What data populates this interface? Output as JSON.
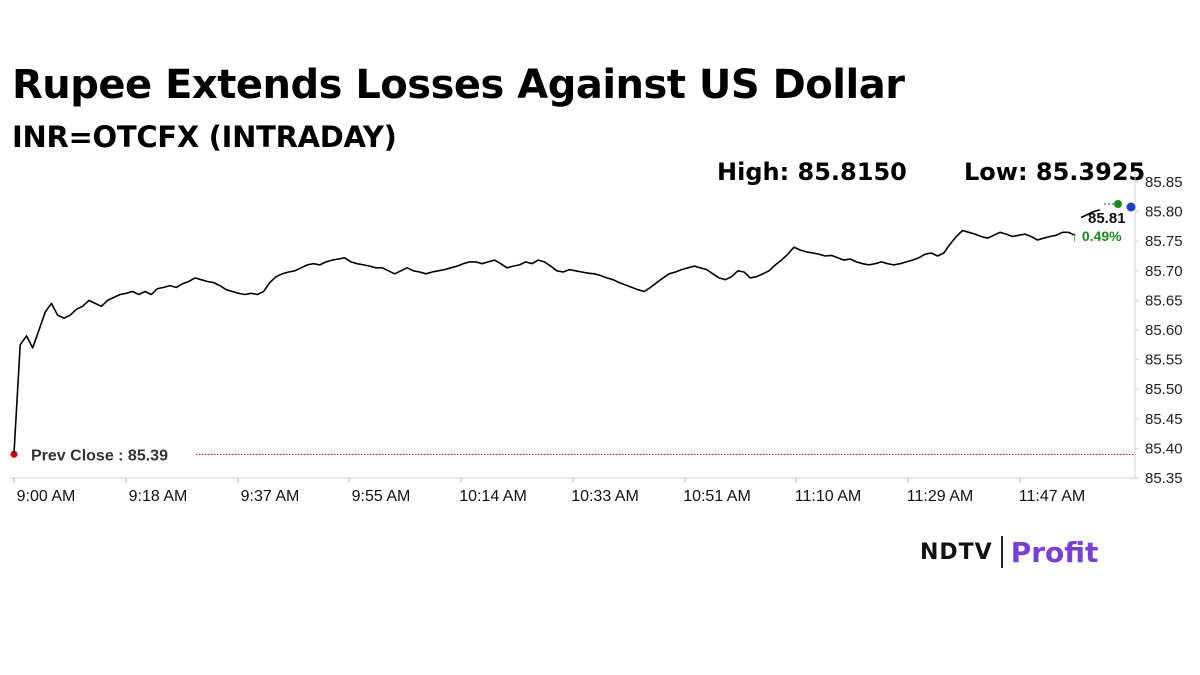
{
  "title": "Rupee Extends Losses Against US Dollar",
  "subtitle": "INR=OTCFX (INTRADAY)",
  "stats": {
    "high": "High: 85.8150",
    "low": "Low: 85.3925"
  },
  "brand": {
    "ndtv": "NDTV",
    "profit": "Profit"
  },
  "colors": {
    "line": "#000000",
    "prev_close": "#d00000",
    "change": "#1a8a1a",
    "marker_blue": "#1f3fbf",
    "marker_green": "#1a8a1a"
  },
  "chart_data": {
    "type": "line",
    "xlabel": "",
    "ylabel": "",
    "ylim": [
      85.35,
      85.85
    ],
    "yticks": [
      "85.85",
      "85.80",
      "85.75",
      "85.70",
      "85.65",
      "85.60",
      "85.55",
      "85.50",
      "85.45",
      "85.40",
      "85.35"
    ],
    "xticks": [
      "9:00 AM",
      "9:18 AM",
      "9:37 AM",
      "9:55 AM",
      "10:14 AM",
      "10:33 AM",
      "10:51 AM",
      "11:10 AM",
      "11:29 AM",
      "11:47 AM"
    ],
    "prev_close": {
      "label": "Prev Close : 85.39",
      "value": 85.39
    },
    "last": {
      "value_label": "85.81",
      "change_label": "↑ 0.49%"
    },
    "series": [
      {
        "points": [
          [
            "9:00",
            85.392
          ],
          [
            "9:01",
            85.575
          ],
          [
            "9:02",
            85.59
          ],
          [
            "9:03",
            85.57
          ],
          [
            "9:04",
            85.6
          ],
          [
            "9:05",
            85.63
          ],
          [
            "9:06",
            85.645
          ],
          [
            "9:07",
            85.625
          ],
          [
            "9:08",
            85.62
          ],
          [
            "9:09",
            85.625
          ],
          [
            "9:10",
            85.635
          ],
          [
            "9:11",
            85.64
          ],
          [
            "9:12",
            85.65
          ],
          [
            "9:13",
            85.645
          ],
          [
            "9:14",
            85.64
          ],
          [
            "9:15",
            85.65
          ],
          [
            "9:16",
            85.655
          ],
          [
            "9:17",
            85.66
          ],
          [
            "9:18",
            85.662
          ],
          [
            "9:19",
            85.665
          ],
          [
            "9:20",
            85.66
          ],
          [
            "9:21",
            85.665
          ],
          [
            "9:22",
            85.66
          ],
          [
            "9:23",
            85.67
          ],
          [
            "9:24",
            85.672
          ],
          [
            "9:25",
            85.675
          ],
          [
            "9:26",
            85.672
          ],
          [
            "9:27",
            85.678
          ],
          [
            "9:28",
            85.682
          ],
          [
            "9:29",
            85.688
          ],
          [
            "9:30",
            85.685
          ],
          [
            "9:31",
            85.682
          ],
          [
            "9:32",
            85.68
          ],
          [
            "9:33",
            85.675
          ],
          [
            "9:34",
            85.668
          ],
          [
            "9:35",
            85.665
          ],
          [
            "9:36",
            85.662
          ],
          [
            "9:37",
            85.66
          ],
          [
            "9:38",
            85.662
          ],
          [
            "9:39",
            85.66
          ],
          [
            "9:40",
            85.665
          ],
          [
            "9:41",
            85.68
          ],
          [
            "9:42",
            85.69
          ],
          [
            "9:43",
            85.695
          ],
          [
            "9:44",
            85.698
          ],
          [
            "9:45",
            85.7
          ],
          [
            "9:46",
            85.705
          ],
          [
            "9:47",
            85.71
          ],
          [
            "9:48",
            85.712
          ],
          [
            "9:49",
            85.71
          ],
          [
            "9:50",
            85.715
          ],
          [
            "9:51",
            85.718
          ],
          [
            "9:52",
            85.72
          ],
          [
            "9:53",
            85.722
          ],
          [
            "9:54",
            85.715
          ],
          [
            "9:55",
            85.712
          ],
          [
            "9:56",
            85.71
          ],
          [
            "9:57",
            85.708
          ],
          [
            "9:58",
            85.705
          ],
          [
            "9:59",
            85.705
          ],
          [
            "10:00",
            85.7
          ],
          [
            "10:01",
            85.695
          ],
          [
            "10:02",
            85.7
          ],
          [
            "10:03",
            85.705
          ],
          [
            "10:04",
            85.7
          ],
          [
            "10:05",
            85.698
          ],
          [
            "10:06",
            85.695
          ],
          [
            "10:07",
            85.698
          ],
          [
            "10:08",
            85.7
          ],
          [
            "10:09",
            85.702
          ],
          [
            "10:10",
            85.705
          ],
          [
            "10:11",
            85.708
          ],
          [
            "10:12",
            85.712
          ],
          [
            "10:13",
            85.715
          ],
          [
            "10:14",
            85.715
          ],
          [
            "10:15",
            85.712
          ],
          [
            "10:16",
            85.715
          ],
          [
            "10:17",
            85.718
          ],
          [
            "10:18",
            85.712
          ],
          [
            "10:19",
            85.705
          ],
          [
            "10:20",
            85.708
          ],
          [
            "10:21",
            85.71
          ],
          [
            "10:22",
            85.715
          ],
          [
            "10:23",
            85.712
          ],
          [
            "10:24",
            85.718
          ],
          [
            "10:25",
            85.715
          ],
          [
            "10:26",
            85.708
          ],
          [
            "10:27",
            85.7
          ],
          [
            "10:28",
            85.698
          ],
          [
            "10:29",
            85.702
          ],
          [
            "10:30",
            85.7
          ],
          [
            "10:31",
            85.698
          ],
          [
            "10:32",
            85.696
          ],
          [
            "10:33",
            85.695
          ],
          [
            "10:34",
            85.692
          ],
          [
            "10:35",
            85.688
          ],
          [
            "10:36",
            85.685
          ],
          [
            "10:37",
            85.68
          ],
          [
            "10:38",
            85.676
          ],
          [
            "10:39",
            85.672
          ],
          [
            "10:40",
            85.668
          ],
          [
            "10:41",
            85.665
          ],
          [
            "10:42",
            85.672
          ],
          [
            "10:43",
            85.68
          ],
          [
            "10:44",
            85.688
          ],
          [
            "10:45",
            85.695
          ],
          [
            "10:46",
            85.698
          ],
          [
            "10:47",
            85.702
          ],
          [
            "10:48",
            85.705
          ],
          [
            "10:49",
            85.708
          ],
          [
            "10:50",
            85.705
          ],
          [
            "10:51",
            85.702
          ],
          [
            "10:52",
            85.695
          ],
          [
            "10:53",
            85.688
          ],
          [
            "10:54",
            85.685
          ],
          [
            "10:55",
            85.69
          ],
          [
            "10:56",
            85.7
          ],
          [
            "10:57",
            85.698
          ],
          [
            "10:58",
            85.688
          ],
          [
            "10:59",
            85.69
          ],
          [
            "11:00",
            85.695
          ],
          [
            "11:01",
            85.7
          ],
          [
            "11:02",
            85.71
          ],
          [
            "11:03",
            85.718
          ],
          [
            "11:04",
            85.728
          ],
          [
            "11:05",
            85.74
          ],
          [
            "11:06",
            85.735
          ],
          [
            "11:07",
            85.732
          ],
          [
            "11:08",
            85.73
          ],
          [
            "11:09",
            85.728
          ],
          [
            "11:10",
            85.725
          ],
          [
            "11:11",
            85.726
          ],
          [
            "11:12",
            85.722
          ],
          [
            "11:13",
            85.718
          ],
          [
            "11:14",
            85.72
          ],
          [
            "11:15",
            85.715
          ],
          [
            "11:16",
            85.712
          ],
          [
            "11:17",
            85.71
          ],
          [
            "11:18",
            85.712
          ],
          [
            "11:19",
            85.715
          ],
          [
            "11:20",
            85.712
          ],
          [
            "11:21",
            85.71
          ],
          [
            "11:22",
            85.712
          ],
          [
            "11:23",
            85.715
          ],
          [
            "11:24",
            85.718
          ],
          [
            "11:25",
            85.722
          ],
          [
            "11:26",
            85.728
          ],
          [
            "11:27",
            85.73
          ],
          [
            "11:28",
            85.725
          ],
          [
            "11:29",
            85.73
          ],
          [
            "11:30",
            85.745
          ],
          [
            "11:31",
            85.758
          ],
          [
            "11:32",
            85.768
          ],
          [
            "11:33",
            85.765
          ],
          [
            "11:34",
            85.762
          ],
          [
            "11:35",
            85.758
          ],
          [
            "11:36",
            85.755
          ],
          [
            "11:37",
            85.76
          ],
          [
            "11:38",
            85.765
          ],
          [
            "11:39",
            85.762
          ],
          [
            "11:40",
            85.758
          ],
          [
            "11:41",
            85.76
          ],
          [
            "11:42",
            85.762
          ],
          [
            "11:43",
            85.758
          ],
          [
            "11:44",
            85.752
          ],
          [
            "11:45",
            85.755
          ],
          [
            "11:46",
            85.758
          ],
          [
            "11:47",
            85.76
          ],
          [
            "11:48",
            85.765
          ],
          [
            "11:49",
            85.765
          ],
          [
            "11:50",
            85.76
          ]
        ]
      },
      {
        "points": [
          [
            "11:51",
            85.79
          ],
          [
            "11:52",
            85.795
          ],
          [
            "11:53",
            85.8
          ],
          [
            "11:54",
            85.803
          ]
        ]
      }
    ]
  }
}
